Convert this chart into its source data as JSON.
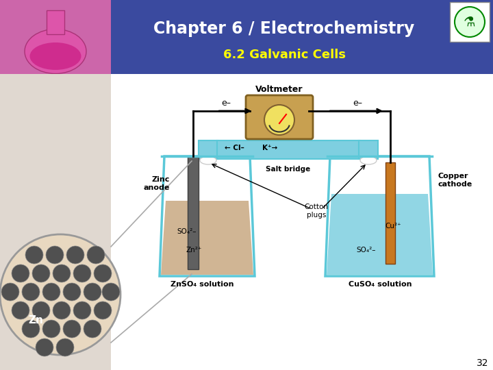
{
  "title": "Chapter 6 / Electrochemistry",
  "subtitle": "6.2 Galvanic Cells",
  "title_color": "#FFFFFF",
  "subtitle_color": "#FFFF00",
  "header_bg": "#3a4a9f",
  "body_bg": "#FFFFFF",
  "page_number": "32",
  "labels": {
    "voltmeter": "Voltmeter",
    "e_left": "e–",
    "e_right": "e–",
    "zinc_anode": "Zinc\nanode",
    "copper_cathode": "Copper\ncathode",
    "salt_bridge": "Salt bridge",
    "cl_label": "← Cl–",
    "k_label": "K⁺→",
    "cotton_plugs": "Cotton\nplugs",
    "so4_left": "SO₄²–",
    "zn2plus": "Zn²⁺",
    "zn_solution": "ZnSO₄ solution",
    "cu2plus": "Cu²⁺",
    "so4_right": "SO₄²–",
    "cu_solution": "CuSO₄ solution",
    "zn_label": "Zn"
  },
  "colors": {
    "beaker_outline": "#5bc8d8",
    "left_solution": "#c8a882",
    "right_solution": "#7ecfe0",
    "salt_bridge_fill": "#7ecfe0",
    "salt_bridge_outline": "#5bc8d8",
    "zinc_electrode": "#606060",
    "copper_electrode": "#c87820",
    "voltmeter_box": "#c8a050",
    "voltmeter_face": "#f0e060",
    "wire_color": "#000000",
    "zoom_bg": "#e8d8c0",
    "zn_atoms": "#505050",
    "left_strip_bg": "#e0d8d0",
    "header_left_img": "#cc66aa"
  }
}
